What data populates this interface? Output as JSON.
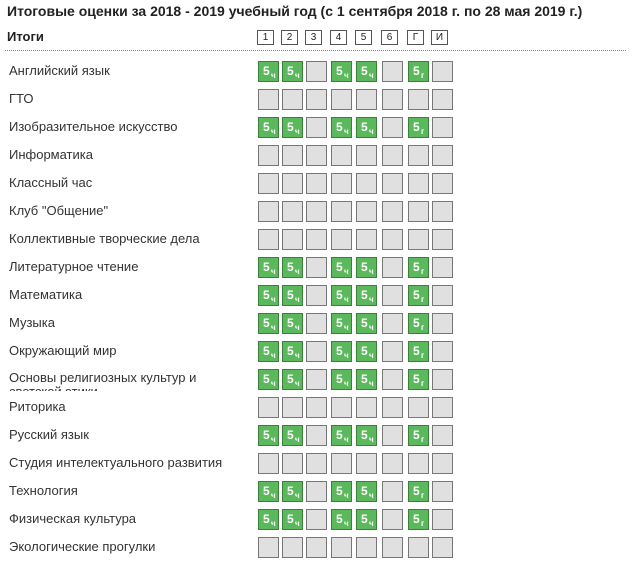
{
  "title": "Итоговые оценки за 2018 - 2019 учебный год (с 1 сентября 2018 г. по 28 мая 2019 г.)",
  "header_label": "Итоги",
  "columns": [
    "1",
    "2",
    "3",
    "4",
    "5",
    "6",
    "Г",
    "И"
  ],
  "colors": {
    "graded": "#5cb85c",
    "empty": "#e0e0e0"
  },
  "subjects": [
    {
      "name": "Английский язык",
      "grades": [
        {
          "m": "5",
          "s": "ч"
        },
        {
          "m": "5",
          "s": "ч"
        },
        null,
        {
          "m": "5",
          "s": "ч"
        },
        {
          "m": "5",
          "s": "ч"
        },
        null,
        {
          "m": "5",
          "s": "г"
        },
        null
      ]
    },
    {
      "name": "ГТО",
      "grades": [
        null,
        null,
        null,
        null,
        null,
        null,
        null,
        null
      ]
    },
    {
      "name": "Изобразительное искусство",
      "grades": [
        {
          "m": "5",
          "s": "ч"
        },
        {
          "m": "5",
          "s": "ч"
        },
        null,
        {
          "m": "5",
          "s": "ч"
        },
        {
          "m": "5",
          "s": "ч"
        },
        null,
        {
          "m": "5",
          "s": "г"
        },
        null
      ]
    },
    {
      "name": "Информатика",
      "grades": [
        null,
        null,
        null,
        null,
        null,
        null,
        null,
        null
      ]
    },
    {
      "name": "Классный час",
      "grades": [
        null,
        null,
        null,
        null,
        null,
        null,
        null,
        null
      ]
    },
    {
      "name": "Клуб \"Общение\"",
      "grades": [
        null,
        null,
        null,
        null,
        null,
        null,
        null,
        null
      ]
    },
    {
      "name": "Коллективные творческие дела",
      "grades": [
        null,
        null,
        null,
        null,
        null,
        null,
        null,
        null
      ]
    },
    {
      "name": "Литературное чтение",
      "grades": [
        {
          "m": "5",
          "s": "ч"
        },
        {
          "m": "5",
          "s": "ч"
        },
        null,
        {
          "m": "5",
          "s": "ч"
        },
        {
          "m": "5",
          "s": "ч"
        },
        null,
        {
          "m": "5",
          "s": "г"
        },
        null
      ]
    },
    {
      "name": "Математика",
      "grades": [
        {
          "m": "5",
          "s": "ч"
        },
        {
          "m": "5",
          "s": "ч"
        },
        null,
        {
          "m": "5",
          "s": "ч"
        },
        {
          "m": "5",
          "s": "ч"
        },
        null,
        {
          "m": "5",
          "s": "г"
        },
        null
      ]
    },
    {
      "name": "Музыка",
      "grades": [
        {
          "m": "5",
          "s": "ч"
        },
        {
          "m": "5",
          "s": "ч"
        },
        null,
        {
          "m": "5",
          "s": "ч"
        },
        {
          "m": "5",
          "s": "ч"
        },
        null,
        {
          "m": "5",
          "s": "г"
        },
        null
      ]
    },
    {
      "name": "Окружающий мир",
      "grades": [
        {
          "m": "5",
          "s": "ч"
        },
        {
          "m": "5",
          "s": "ч"
        },
        null,
        {
          "m": "5",
          "s": "ч"
        },
        {
          "m": "5",
          "s": "ч"
        },
        null,
        {
          "m": "5",
          "s": "г"
        },
        null
      ]
    },
    {
      "name": "Основы религиозных культур и светской этики",
      "clipped": true,
      "grades": [
        {
          "m": "5",
          "s": "ч"
        },
        {
          "m": "5",
          "s": "ч"
        },
        null,
        {
          "m": "5",
          "s": "ч"
        },
        {
          "m": "5",
          "s": "ч"
        },
        null,
        {
          "m": "5",
          "s": "г"
        },
        null
      ]
    },
    {
      "name": "Риторика",
      "grades": [
        null,
        null,
        null,
        null,
        null,
        null,
        null,
        null
      ]
    },
    {
      "name": "Русский язык",
      "grades": [
        {
          "m": "5",
          "s": "ч"
        },
        {
          "m": "5",
          "s": "ч"
        },
        null,
        {
          "m": "5",
          "s": "ч"
        },
        {
          "m": "5",
          "s": "ч"
        },
        null,
        {
          "m": "5",
          "s": "г"
        },
        null
      ]
    },
    {
      "name": "Студия интелектуального развития",
      "grades": [
        null,
        null,
        null,
        null,
        null,
        null,
        null,
        null
      ]
    },
    {
      "name": "Технология",
      "grades": [
        {
          "m": "5",
          "s": "ч"
        },
        {
          "m": "5",
          "s": "ч"
        },
        null,
        {
          "m": "5",
          "s": "ч"
        },
        {
          "m": "5",
          "s": "ч"
        },
        null,
        {
          "m": "5",
          "s": "г"
        },
        null
      ]
    },
    {
      "name": "Физическая культура",
      "grades": [
        {
          "m": "5",
          "s": "ч"
        },
        {
          "m": "5",
          "s": "ч"
        },
        null,
        {
          "m": "5",
          "s": "ч"
        },
        {
          "m": "5",
          "s": "ч"
        },
        null,
        {
          "m": "5",
          "s": "г"
        },
        null
      ]
    },
    {
      "name": "Экологические прогулки",
      "grades": [
        null,
        null,
        null,
        null,
        null,
        null,
        null,
        null
      ]
    }
  ]
}
